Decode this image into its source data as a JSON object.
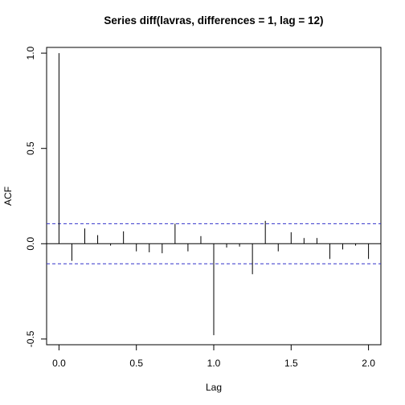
{
  "chart_data": {
    "type": "bar",
    "subtype": "acf-spike-plot",
    "title": "Series  diff(lavras, differences = 1, lag = 12)",
    "xlabel": "Lag",
    "ylabel": "ACF",
    "xlim": [
      -0.08,
      2.08
    ],
    "ylim": [
      -0.53,
      1.03
    ],
    "x_ticks": [
      0.0,
      0.5,
      1.0,
      1.5,
      2.0
    ],
    "x_tick_labels": [
      "0.0",
      "0.5",
      "1.0",
      "1.5",
      "2.0"
    ],
    "y_ticks": [
      -0.5,
      0.0,
      0.5,
      1.0
    ],
    "y_tick_labels": [
      "-0.5",
      "0.0",
      "0.5",
      "1.0"
    ],
    "confidence_bound": 0.105,
    "confidence_color": "#3333cc",
    "zero_line": true,
    "grid": false,
    "lags": [
      0.0,
      0.0833,
      0.1667,
      0.25,
      0.3333,
      0.4167,
      0.5,
      0.5833,
      0.6667,
      0.75,
      0.8333,
      0.9167,
      1.0,
      1.0833,
      1.1667,
      1.25,
      1.3333,
      1.4167,
      1.5,
      1.5833,
      1.6667,
      1.75,
      1.8333,
      1.9167,
      2.0
    ],
    "values": [
      1.0,
      -0.09,
      0.08,
      0.045,
      -0.01,
      0.065,
      -0.04,
      -0.045,
      -0.05,
      0.105,
      -0.04,
      0.04,
      -0.48,
      -0.02,
      -0.015,
      -0.16,
      0.12,
      -0.04,
      0.06,
      0.03,
      0.03,
      -0.08,
      -0.03,
      -0.01,
      -0.08
    ]
  }
}
